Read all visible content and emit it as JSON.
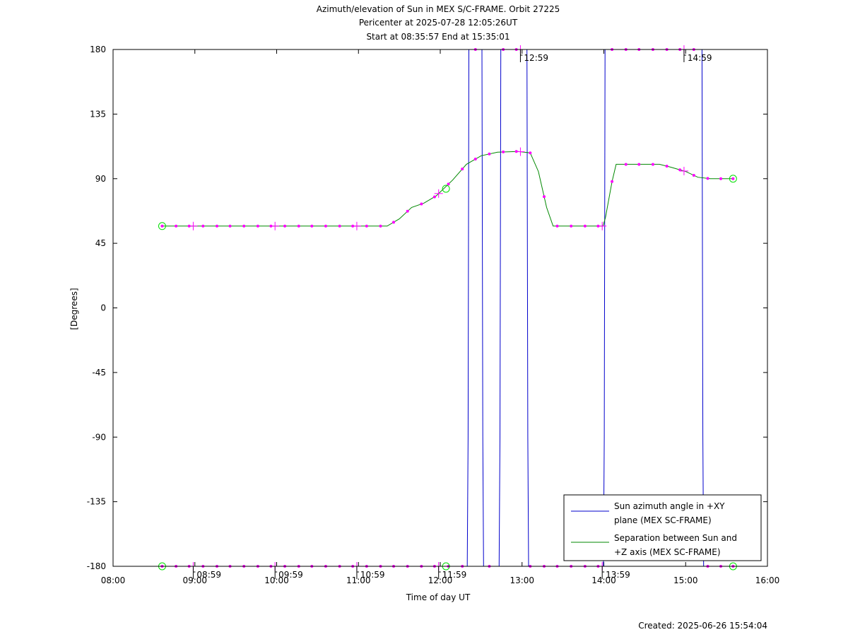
{
  "chart_data": {
    "type": "line",
    "title": [
      "Azimuth/elevation of Sun in MEX S/C-FRAME.  Orbit 27225",
      "Pericenter at 2025-07-28 12:05:26UT",
      "Start at 08:35:57 End at 15:35:01"
    ],
    "xlabel": "Time of day UT",
    "ylabel": "[Degrees]",
    "footer": "Created: 2025-06-26 15:54:04",
    "x_unit": "hours of day",
    "xlim": [
      8,
      16
    ],
    "ylim": [
      -180,
      180
    ],
    "x_ticks": [
      8,
      9,
      10,
      11,
      12,
      13,
      14,
      15,
      16
    ],
    "x_tick_labels": [
      "08:00",
      "09:00",
      "10:00",
      "11:00",
      "12:00",
      "13:00",
      "14:00",
      "15:00",
      "16:00"
    ],
    "y_ticks": [
      180,
      135,
      90,
      45,
      0,
      -45,
      -90,
      -135,
      -180
    ],
    "y_tick_labels": [
      "180",
      "135",
      "90",
      "45",
      "0",
      "-45",
      "-90",
      "-135",
      "-180"
    ],
    "legend_position": "bottom-right",
    "series": [
      {
        "name": "Sun azimuth angle in +XY plane (MEX SC-FRAME)",
        "legend_lines": [
          "Sun azimuth angle in +XY",
          "plane (MEX SC-FRAME)"
        ],
        "color": "#0000cc",
        "points": [
          [
            8.6,
            -180
          ],
          [
            12.33,
            -180
          ],
          [
            12.34,
            -90
          ],
          [
            12.35,
            180
          ],
          [
            12.51,
            180
          ],
          [
            12.52,
            -90
          ],
          [
            12.53,
            -180
          ],
          [
            12.72,
            -180
          ],
          [
            12.73,
            -90
          ],
          [
            12.74,
            180
          ],
          [
            13.06,
            180
          ],
          [
            13.07,
            -90
          ],
          [
            13.08,
            -180
          ],
          [
            13.995,
            -180
          ],
          [
            14.005,
            -90
          ],
          [
            14.015,
            180
          ],
          [
            15.2,
            180
          ],
          [
            15.21,
            -90
          ],
          [
            15.22,
            -180
          ],
          [
            15.58,
            -180
          ]
        ]
      },
      {
        "name": "Separation between Sun and +Z axis (MEX SC-FRAME)",
        "legend_lines": [
          "Separation between Sun and",
          "+Z axis (MEX SC-FRAME)"
        ],
        "color": "#008800",
        "points": [
          [
            8.6,
            57
          ],
          [
            11.35,
            57
          ],
          [
            11.5,
            62
          ],
          [
            11.65,
            70
          ],
          [
            11.8,
            73
          ],
          [
            11.95,
            78
          ],
          [
            12.15,
            89
          ],
          [
            12.32,
            100
          ],
          [
            12.5,
            106
          ],
          [
            12.7,
            108.5
          ],
          [
            12.95,
            109
          ],
          [
            13.1,
            108
          ],
          [
            13.2,
            95
          ],
          [
            13.3,
            70
          ],
          [
            13.38,
            57
          ],
          [
            13.99,
            57
          ],
          [
            14.02,
            63
          ],
          [
            14.1,
            88
          ],
          [
            14.15,
            100
          ],
          [
            14.4,
            100
          ],
          [
            14.68,
            100
          ],
          [
            14.82,
            98
          ],
          [
            15.0,
            95
          ],
          [
            15.15,
            91
          ],
          [
            15.3,
            90
          ],
          [
            15.58,
            90
          ]
        ]
      }
    ],
    "markers": {
      "color": "#ff00ff",
      "dot_times": [
        8.6,
        8.77,
        8.93,
        9.1,
        9.27,
        9.43,
        9.6,
        9.77,
        9.93,
        10.1,
        10.27,
        10.43,
        10.6,
        10.77,
        10.93,
        11.1,
        11.27,
        11.43,
        11.6,
        11.77,
        11.93,
        12.1,
        12.27,
        12.43,
        12.6,
        12.77,
        12.93,
        13.1,
        13.27,
        13.43,
        13.6,
        13.77,
        13.93,
        14.1,
        14.27,
        14.43,
        14.6,
        14.77,
        14.93,
        15.1,
        15.27,
        15.43,
        15.58
      ],
      "cross_times": [
        8.98,
        9.98,
        10.98,
        11.98,
        12.98,
        13.98,
        14.98
      ],
      "time_labels": [
        {
          "t": 8.98,
          "label": "08:59"
        },
        {
          "t": 9.98,
          "label": "09:59"
        },
        {
          "t": 10.98,
          "label": "10:59"
        },
        {
          "t": 11.98,
          "label": "11:59"
        },
        {
          "t": 12.98,
          "label": "12:59"
        },
        {
          "t": 13.98,
          "label": "13:59"
        },
        {
          "t": 14.98,
          "label": "14:59"
        }
      ]
    },
    "circle_markers": {
      "color": "#00dd00",
      "points": [
        [
          8.6,
          57
        ],
        [
          8.6,
          -180
        ],
        [
          12.07,
          83
        ],
        [
          12.07,
          -180
        ],
        [
          15.58,
          90
        ],
        [
          15.58,
          -180
        ]
      ]
    }
  }
}
